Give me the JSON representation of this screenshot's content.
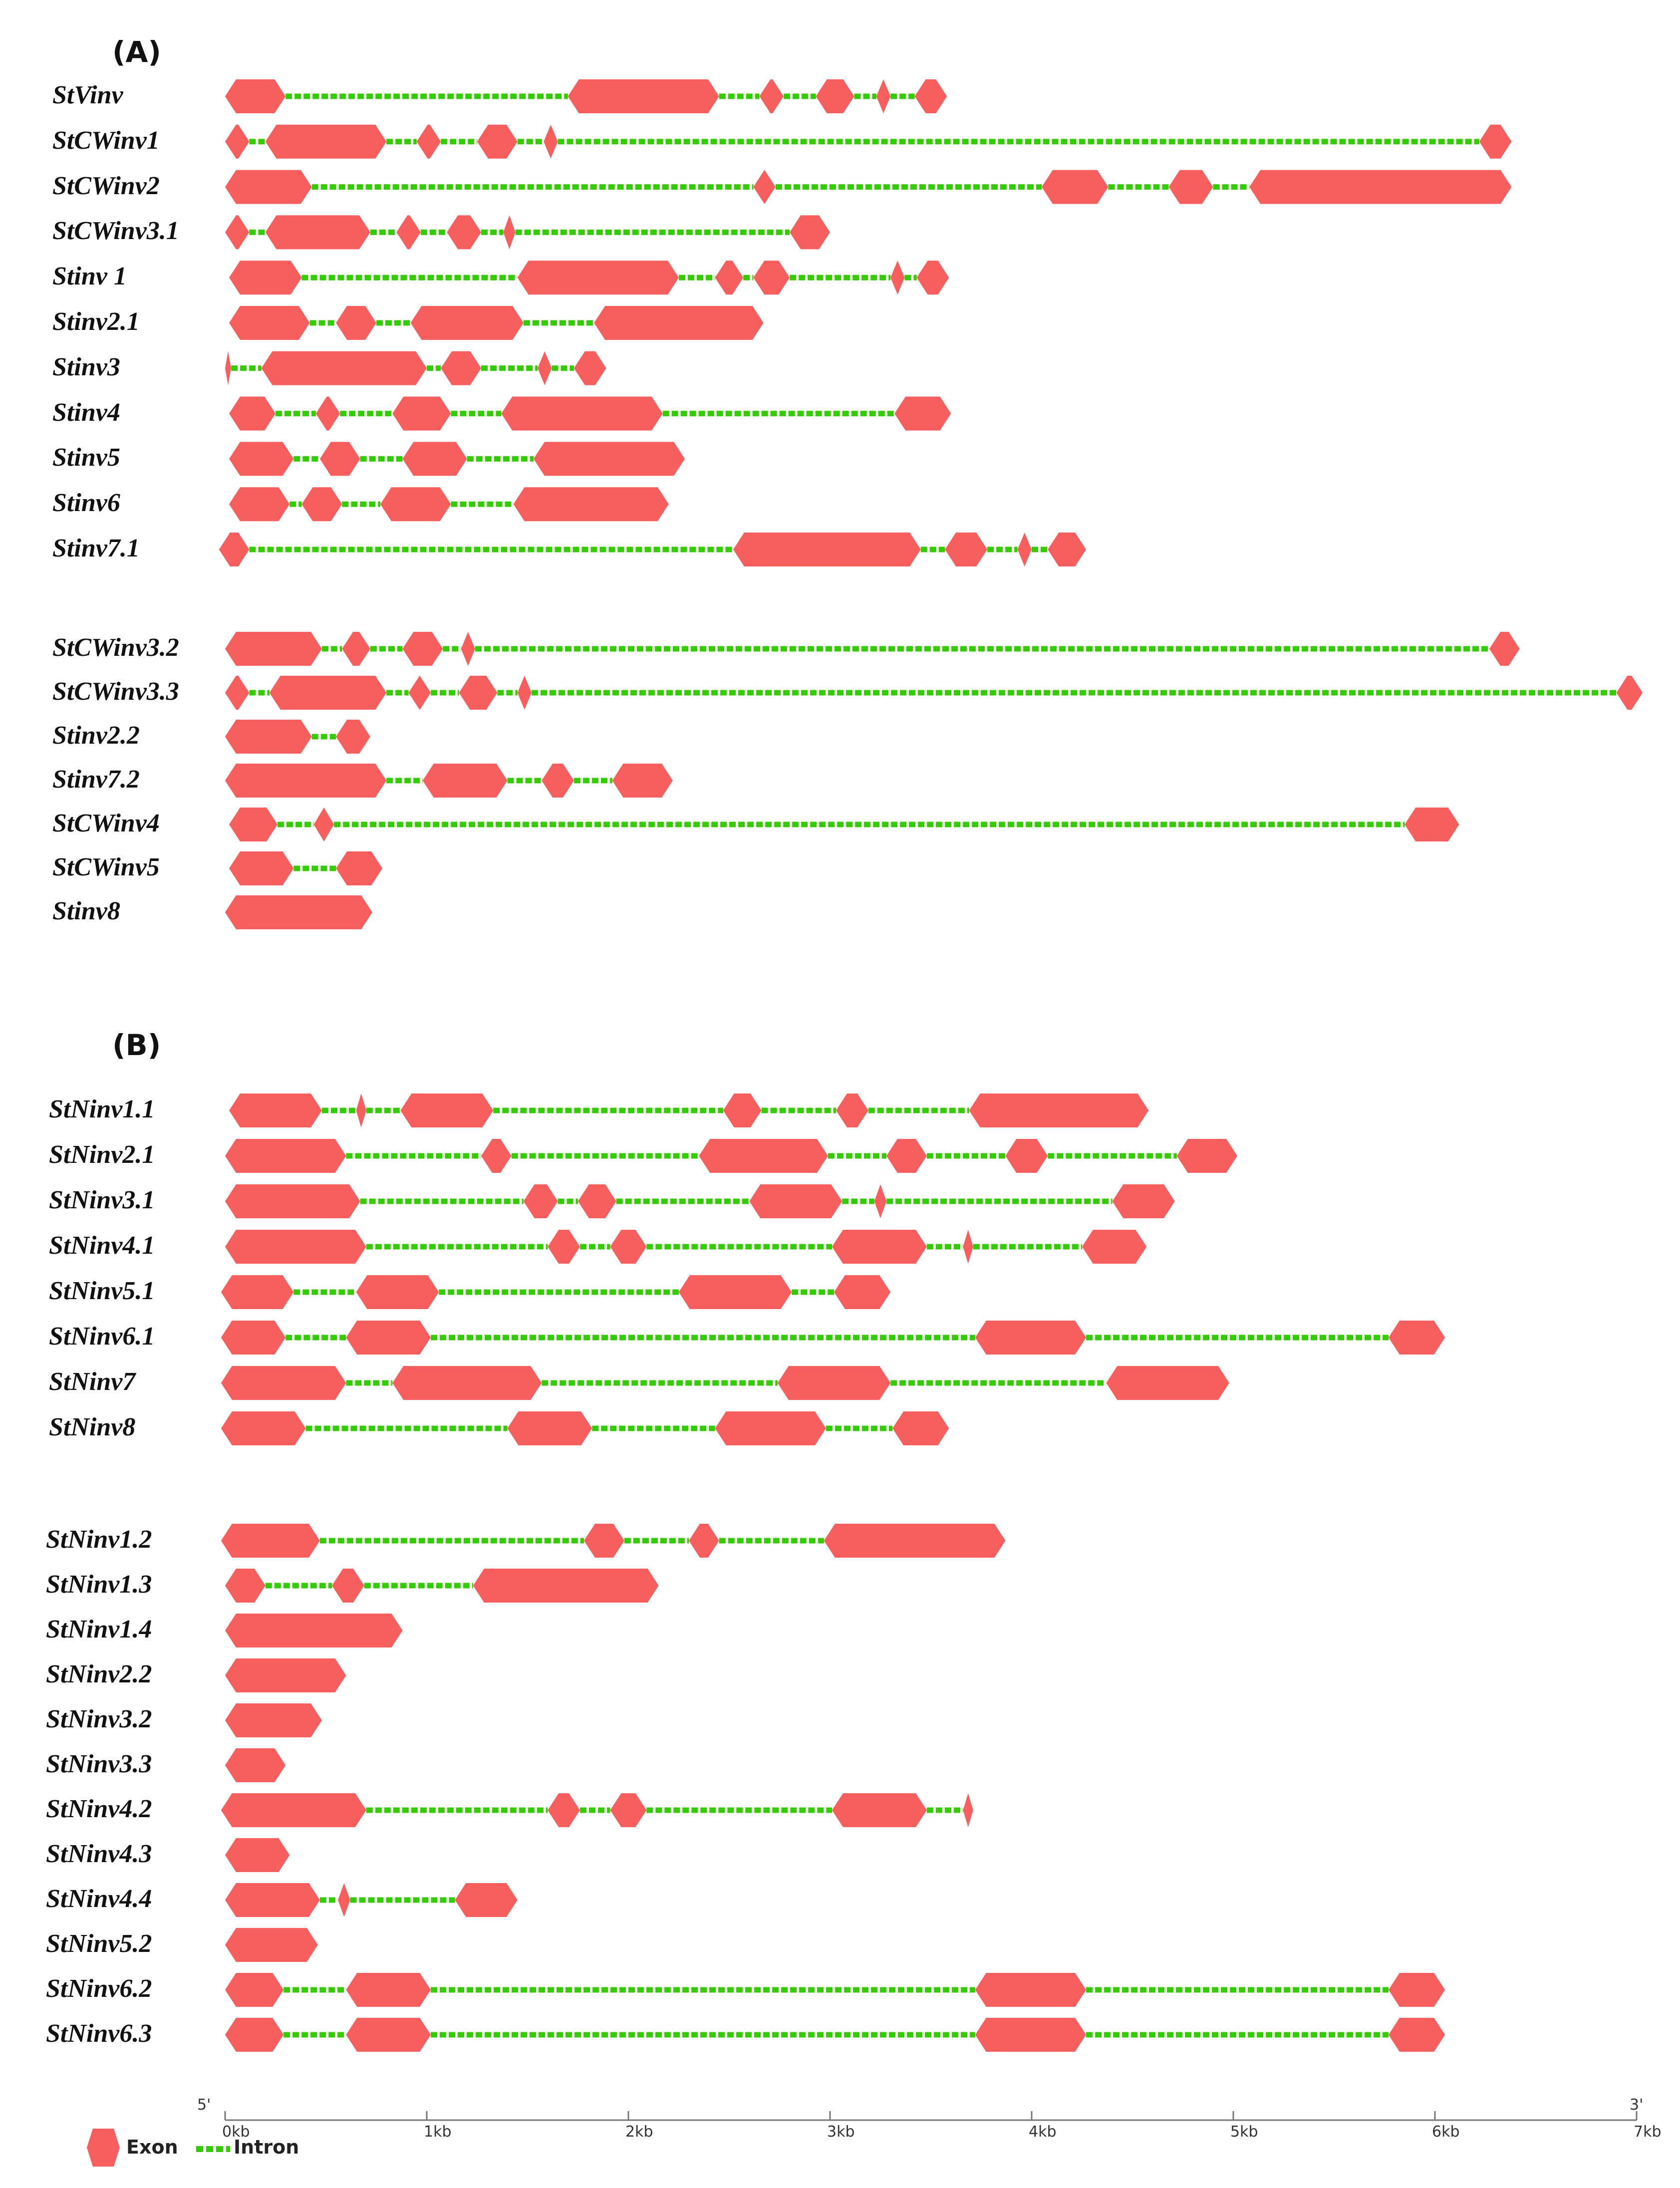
{
  "colors": {
    "exon": "#f75e5e",
    "intron": "#33cc00"
  },
  "panels": [
    {
      "label": "(A)",
      "groups": [
        [
          {
            "name": "StVinv",
            "exons": [
              [
                0,
                0.3
              ],
              [
                1.7,
                2.45
              ],
              [
                2.65,
                2.77
              ],
              [
                2.93,
                3.12
              ],
              [
                3.23,
                3.3
              ],
              [
                3.42,
                3.58
              ]
            ]
          },
          {
            "name": "StCWinv1",
            "exons": [
              [
                0,
                0.12
              ],
              [
                0.2,
                0.8
              ],
              [
                0.95,
                1.07
              ],
              [
                1.25,
                1.45
              ],
              [
                1.58,
                1.65
              ],
              [
                6.22,
                6.38
              ]
            ]
          },
          {
            "name": "StCWinv2",
            "exons": [
              [
                0,
                0.43
              ],
              [
                2.62,
                2.73
              ],
              [
                4.05,
                4.38
              ],
              [
                4.68,
                4.9
              ],
              [
                5.08,
                6.38
              ]
            ]
          },
          {
            "name": "StCWinv3.1",
            "exons": [
              [
                0,
                0.12
              ],
              [
                0.2,
                0.72
              ],
              [
                0.85,
                0.97
              ],
              [
                1.1,
                1.27
              ],
              [
                1.38,
                1.44
              ],
              [
                2.8,
                3.0
              ]
            ]
          },
          {
            "name": "Stinv 1",
            "exons": [
              [
                0.02,
                0.38
              ],
              [
                1.45,
                2.25
              ],
              [
                2.43,
                2.57
              ],
              [
                2.62,
                2.8
              ],
              [
                3.3,
                3.37
              ],
              [
                3.43,
                3.59
              ]
            ]
          },
          {
            "name": "Stinv2.1",
            "exons": [
              [
                0.02,
                0.42
              ],
              [
                0.55,
                0.75
              ],
              [
                0.92,
                1.48
              ],
              [
                1.83,
                2.67
              ]
            ]
          },
          {
            "name": "Stinv3",
            "exons": [
              [
                0,
                0.03
              ],
              [
                0.18,
                1.0
              ],
              [
                1.07,
                1.27
              ],
              [
                1.55,
                1.62
              ],
              [
                1.73,
                1.89
              ]
            ]
          },
          {
            "name": "Stinv4",
            "exons": [
              [
                0.02,
                0.25
              ],
              [
                0.45,
                0.57
              ],
              [
                0.83,
                1.12
              ],
              [
                1.37,
                2.17
              ],
              [
                3.32,
                3.6
              ]
            ]
          },
          {
            "name": "Stinv5",
            "exons": [
              [
                0.02,
                0.34
              ],
              [
                0.47,
                0.67
              ],
              [
                0.88,
                1.2
              ],
              [
                1.53,
                2.28
              ]
            ]
          },
          {
            "name": "Stinv6",
            "exons": [
              [
                0.02,
                0.32
              ],
              [
                0.38,
                0.58
              ],
              [
                0.77,
                1.12
              ],
              [
                1.43,
                2.2
              ]
            ]
          },
          {
            "name": "Stinv7.1",
            "exons": [
              [
                -0.03,
                0.12
              ],
              [
                2.52,
                3.45
              ],
              [
                3.57,
                3.78
              ],
              [
                3.93,
                4.0
              ],
              [
                4.08,
                4.27
              ]
            ]
          }
        ],
        [
          {
            "name": "StCWinv3.2",
            "exons": [
              [
                0,
                0.48
              ],
              [
                0.58,
                0.72
              ],
              [
                0.88,
                1.08
              ],
              [
                1.17,
                1.24
              ],
              [
                6.27,
                6.42
              ]
            ]
          },
          {
            "name": "StCWinv3.3",
            "exons": [
              [
                0,
                0.12
              ],
              [
                0.22,
                0.8
              ],
              [
                0.91,
                1.02
              ],
              [
                1.16,
                1.35
              ],
              [
                1.45,
                1.52
              ],
              [
                6.9,
                7.03
              ]
            ]
          },
          {
            "name": "Stinv2.2",
            "exons": [
              [
                0,
                0.43
              ],
              [
                0.55,
                0.72
              ]
            ]
          },
          {
            "name": "Stinv7.2",
            "exons": [
              [
                0,
                0.8
              ],
              [
                0.98,
                1.4
              ],
              [
                1.57,
                1.73
              ],
              [
                1.92,
                2.22
              ]
            ]
          },
          {
            "name": "StCWinv4",
            "exons": [
              [
                0.02,
                0.26
              ],
              [
                0.44,
                0.54
              ],
              [
                5.85,
                6.12
              ]
            ]
          },
          {
            "name": "StCWinv5",
            "exons": [
              [
                0.02,
                0.34
              ],
              [
                0.55,
                0.78
              ]
            ]
          },
          {
            "name": "Stinv8",
            "exons": [
              [
                0,
                0.73
              ]
            ]
          }
        ]
      ]
    },
    {
      "label": "(B)",
      "groups": [
        [
          {
            "name": "StNinv1.1",
            "exons": [
              [
                0.02,
                0.48
              ],
              [
                0.65,
                0.7
              ],
              [
                0.87,
                1.33
              ],
              [
                2.47,
                2.66
              ],
              [
                3.03,
                3.19
              ],
              [
                3.69,
                4.58
              ]
            ]
          },
          {
            "name": "StNinv2.1",
            "exons": [
              [
                0,
                0.6
              ],
              [
                1.27,
                1.42
              ],
              [
                2.35,
                2.99
              ],
              [
                3.28,
                3.48
              ],
              [
                3.87,
                4.08
              ],
              [
                4.72,
                5.02
              ]
            ]
          },
          {
            "name": "StNinv3.1",
            "exons": [
              [
                0,
                0.67
              ],
              [
                1.48,
                1.65
              ],
              [
                1.75,
                1.94
              ],
              [
                2.6,
                3.06
              ],
              [
                3.22,
                3.28
              ],
              [
                4.4,
                4.71
              ]
            ]
          },
          {
            "name": "StNinv4.1",
            "exons": [
              [
                0,
                0.7
              ],
              [
                1.6,
                1.76
              ],
              [
                1.91,
                2.09
              ],
              [
                3.01,
                3.48
              ],
              [
                3.66,
                3.71
              ],
              [
                4.25,
                4.57
              ]
            ]
          },
          {
            "name": "StNinv5.1",
            "exons": [
              [
                -0.02,
                0.34
              ],
              [
                0.65,
                1.06
              ],
              [
                2.25,
                2.81
              ],
              [
                3.02,
                3.3
              ]
            ]
          },
          {
            "name": "StNinv6.1",
            "exons": [
              [
                -0.02,
                0.3
              ],
              [
                0.6,
                1.02
              ],
              [
                3.72,
                4.27
              ],
              [
                5.77,
                6.05
              ]
            ]
          },
          {
            "name": "StNinv7",
            "exons": [
              [
                -0.02,
                0.6
              ],
              [
                0.83,
                1.57
              ],
              [
                2.74,
                3.3
              ],
              [
                4.37,
                4.98
              ]
            ]
          },
          {
            "name": "StNinv8",
            "exons": [
              [
                -0.02,
                0.4
              ],
              [
                1.4,
                1.82
              ],
              [
                2.43,
                2.98
              ],
              [
                3.31,
                3.59
              ]
            ]
          }
        ],
        [
          {
            "name": "StNinv1.2",
            "exons": [
              [
                -0.02,
                0.47
              ],
              [
                1.78,
                1.98
              ],
              [
                2.3,
                2.45
              ],
              [
                2.97,
                3.87
              ]
            ]
          },
          {
            "name": "StNinv1.3",
            "exons": [
              [
                0,
                0.2
              ],
              [
                0.53,
                0.69
              ],
              [
                1.23,
                2.15
              ]
            ]
          },
          {
            "name": "StNinv1.4",
            "exons": [
              [
                0,
                0.88
              ]
            ]
          },
          {
            "name": "StNinv2.2",
            "exons": [
              [
                0,
                0.6
              ]
            ]
          },
          {
            "name": "StNinv3.2",
            "exons": [
              [
                0,
                0.48
              ]
            ]
          },
          {
            "name": "StNinv3.3",
            "exons": [
              [
                0,
                0.3
              ]
            ]
          },
          {
            "name": "StNinv4.2",
            "exons": [
              [
                -0.02,
                0.7
              ],
              [
                1.6,
                1.76
              ],
              [
                1.91,
                2.09
              ],
              [
                3.01,
                3.48
              ],
              [
                3.66,
                3.71
              ]
            ]
          },
          {
            "name": "StNinv4.3",
            "exons": [
              [
                0,
                0.32
              ]
            ]
          },
          {
            "name": "StNinv4.4",
            "exons": [
              [
                0,
                0.47
              ],
              [
                0.56,
                0.62
              ],
              [
                1.14,
                1.45
              ]
            ]
          },
          {
            "name": "StNinv5.2",
            "exons": [
              [
                0,
                0.46
              ]
            ]
          },
          {
            "name": "StNinv6.2",
            "exons": [
              [
                0,
                0.29
              ],
              [
                0.6,
                1.02
              ],
              [
                3.72,
                4.27
              ],
              [
                5.77,
                6.05
              ]
            ]
          },
          {
            "name": "StNinv6.3",
            "exons": [
              [
                0,
                0.29
              ],
              [
                0.6,
                1.02
              ],
              [
                3.72,
                4.27
              ],
              [
                5.77,
                6.05
              ]
            ]
          }
        ]
      ]
    }
  ],
  "axis": {
    "start_label": "5'",
    "end_label": "3'",
    "ticks": [
      "0kb",
      "1kb",
      "2kb",
      "3kb",
      "4kb",
      "5kb",
      "6kb",
      "7kb"
    ],
    "range_kb": [
      0,
      7
    ]
  },
  "legend": {
    "exon_label": "Exon",
    "intron_label": "Intron"
  }
}
